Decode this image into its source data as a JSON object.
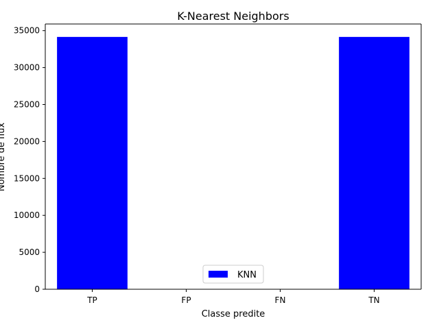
{
  "chart_data": {
    "type": "bar",
    "title": "K-Nearest Neighbors",
    "xlabel": "Classe predite",
    "ylabel": "Nombre de flux",
    "categories": [
      "TP",
      "FP",
      "FN",
      "TN"
    ],
    "series": [
      {
        "name": "KNN",
        "values": [
          34150,
          0,
          0,
          34150
        ],
        "color": "#0000ff"
      }
    ],
    "ylim": [
      0,
      35900
    ],
    "yticks": [
      0,
      5000,
      10000,
      15000,
      20000,
      25000,
      30000,
      35000
    ],
    "grid": false,
    "legend_position": "bottom-center"
  }
}
